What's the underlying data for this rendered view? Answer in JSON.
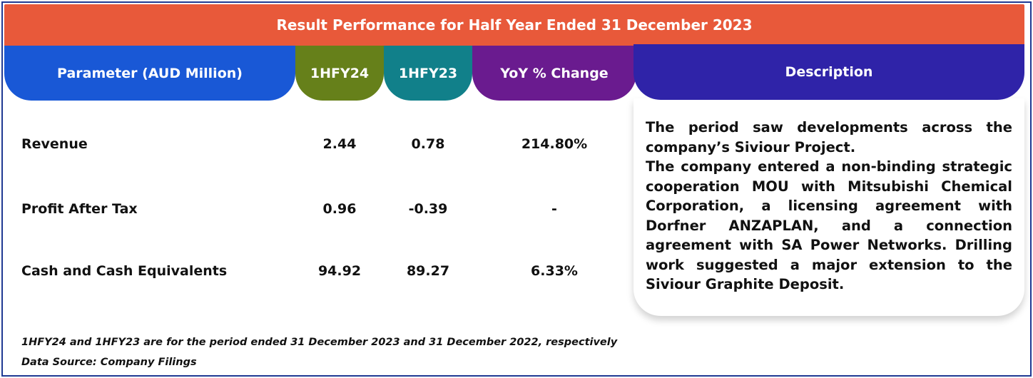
{
  "title": "Result Performance for Half Year Ended 31 December 2023",
  "headers": {
    "parameter": "Parameter (AUD Million)",
    "h1fy24": "1HFY24",
    "h1fy23": "1HFY23",
    "yoy": "YoY % Change",
    "description": "Description"
  },
  "rows": [
    {
      "label": "Revenue",
      "h1fy24": "2.44",
      "h1fy23": "0.78",
      "yoy": "214.80%"
    },
    {
      "label": "Profit After Tax",
      "h1fy24": "0.96",
      "h1fy23": "-0.39",
      "yoy": "-"
    },
    {
      "label": "Cash and Cash Equivalents",
      "h1fy24": "94.92",
      "h1fy23": "89.27",
      "yoy": "6.33%"
    }
  ],
  "description": {
    "para1": "The period saw developments across the company’s Siviour Project.",
    "para2": "The company entered a non-binding strategic cooperation MOU with Mitsubishi Chemical Corporation, a licensing agreement with Dorfner ANZAPLAN, and a connection agreement with SA Power Networks. Drilling work suggested a major extension to the Siviour Graphite Deposit."
  },
  "footnotes": {
    "note": "1HFY24 and 1HFY23 are for the period ended 31 December 2023 and 31 December 2022, respectively",
    "source": "Data Source: Company Filings"
  },
  "colors": {
    "title_bar": "#e8593a",
    "parameter_header": "#1958d6",
    "h1fy24_header": "#66801a",
    "h1fy23_header": "#11808a",
    "yoy_header": "#6a1b8f",
    "description_header": "#2f23a8",
    "border": "#1f3a93"
  }
}
